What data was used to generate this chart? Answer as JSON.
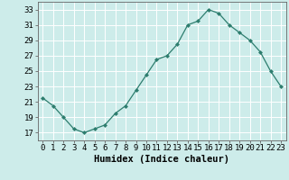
{
  "x": [
    0,
    1,
    2,
    3,
    4,
    5,
    6,
    7,
    8,
    9,
    10,
    11,
    12,
    13,
    14,
    15,
    16,
    17,
    18,
    19,
    20,
    21,
    22,
    23
  ],
  "y": [
    21.5,
    20.5,
    19.0,
    17.5,
    17.0,
    17.5,
    18.0,
    19.5,
    20.5,
    22.5,
    24.5,
    26.5,
    27.0,
    28.5,
    31.0,
    31.5,
    33.0,
    32.5,
    31.0,
    30.0,
    29.0,
    27.5,
    25.0,
    23.0
  ],
  "line_color": "#2d7d6e",
  "marker": "D",
  "marker_size": 2,
  "bg_color": "#cdecea",
  "grid_color": "#ffffff",
  "xlabel": "Humidex (Indice chaleur)",
  "xlim": [
    -0.5,
    23.5
  ],
  "ylim": [
    16.0,
    34.0
  ],
  "yticks": [
    17,
    19,
    21,
    23,
    25,
    27,
    29,
    31,
    33
  ],
  "xticks": [
    0,
    1,
    2,
    3,
    4,
    5,
    6,
    7,
    8,
    9,
    10,
    11,
    12,
    13,
    14,
    15,
    16,
    17,
    18,
    19,
    20,
    21,
    22,
    23
  ],
  "tick_fontsize": 6.5,
  "xlabel_fontsize": 7.5
}
